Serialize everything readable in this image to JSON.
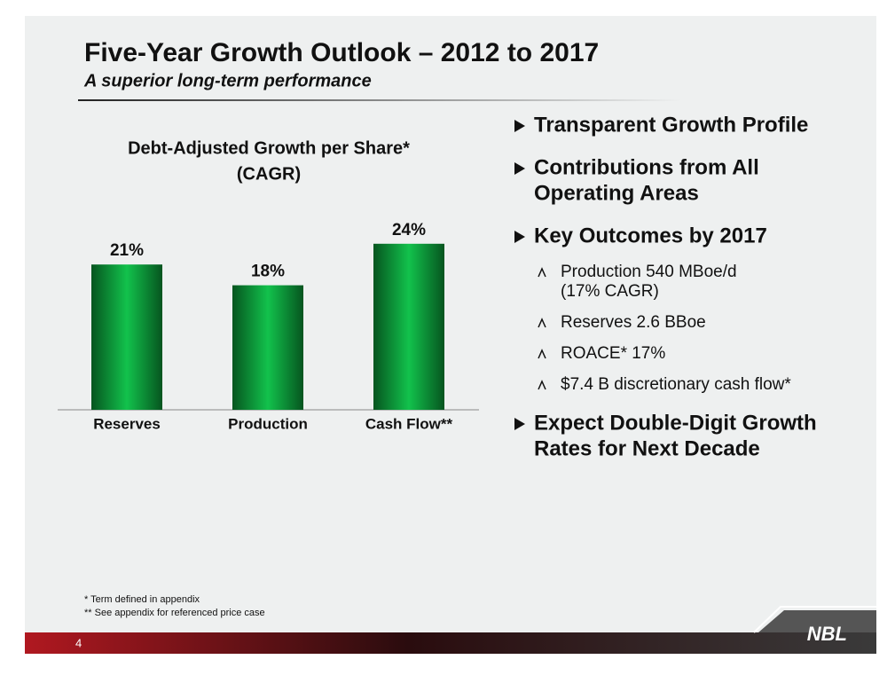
{
  "header": {
    "title": "Five-Year Growth Outlook – 2012 to 2017",
    "subtitle": "A superior long-term performance"
  },
  "chart_data": {
    "type": "bar",
    "title": [
      "Debt-Adjusted Growth per Share*",
      "(CAGR)"
    ],
    "categories": [
      "Reserves",
      "Production",
      "Cash Flow**"
    ],
    "values": [
      21,
      18,
      24
    ],
    "value_labels": [
      "21%",
      "18%",
      "24%"
    ],
    "color": "#0a9a3c"
  },
  "bullets": [
    {
      "lines": [
        "Transparent Growth Profile"
      ]
    },
    {
      "lines": [
        "Contributions from All",
        "Operating Areas"
      ]
    },
    {
      "lines": [
        "Key Outcomes by 2017"
      ],
      "sub": [
        {
          "lines": [
            "Production 540 MBoe/d",
            "(17% CAGR)"
          ]
        },
        {
          "lines": [
            "Reserves 2.6 BBoe"
          ]
        },
        {
          "lines": [
            "ROACE* 17%"
          ]
        },
        {
          "lines": [
            "$7.4 B discretionary cash flow*"
          ]
        }
      ]
    },
    {
      "lines": [
        "Expect Double-Digit Growth",
        "Rates for Next Decade"
      ]
    }
  ],
  "footnotes": [
    "* Term defined in appendix",
    "** See appendix for referenced price case"
  ],
  "page_number": "4",
  "logo": "NBL"
}
